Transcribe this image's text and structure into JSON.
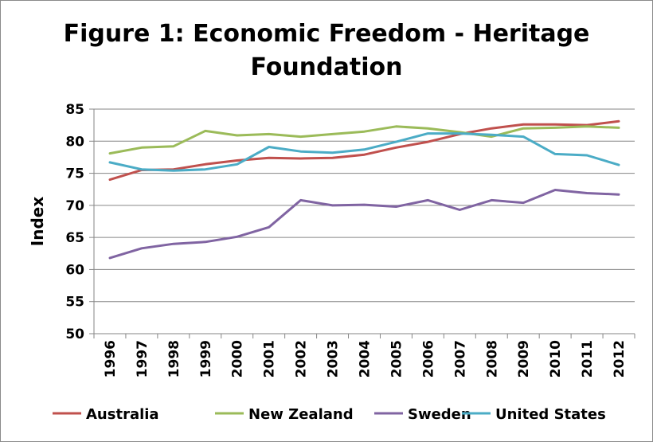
{
  "chart_data": {
    "type": "line",
    "title": "Figure 1: Economic Freedom - Heritage Foundation",
    "title_lines": [
      "Figure 1: Economic Freedom - Heritage",
      "Foundation"
    ],
    "xlabel": "",
    "ylabel": "Index",
    "ylim": [
      50,
      85
    ],
    "yticks": [
      50,
      55,
      60,
      65,
      70,
      75,
      80,
      85
    ],
    "grid": true,
    "legend": "bottom",
    "categories": [
      "1996",
      "1997",
      "1998",
      "1999",
      "2000",
      "2001",
      "2002",
      "2003",
      "2004",
      "2005",
      "2006",
      "2007",
      "2008",
      "2009",
      "2010",
      "2011",
      "2012"
    ],
    "series": [
      {
        "name": "Australia",
        "color": "#c0504d",
        "values": [
          74.0,
          75.5,
          75.6,
          76.4,
          77.0,
          77.4,
          77.3,
          77.4,
          77.9,
          79.0,
          79.9,
          81.1,
          82.0,
          82.6,
          82.6,
          82.5,
          83.1
        ]
      },
      {
        "name": "New Zealand",
        "color": "#9bbb59",
        "values": [
          78.1,
          79.0,
          79.2,
          81.6,
          80.9,
          81.1,
          80.7,
          81.1,
          81.5,
          82.3,
          82.0,
          81.4,
          80.7,
          82.0,
          82.1,
          82.3,
          82.1
        ]
      },
      {
        "name": "Sweden",
        "color": "#8064a2",
        "values": [
          61.8,
          63.3,
          64.0,
          64.3,
          65.1,
          66.6,
          70.8,
          70.0,
          70.1,
          69.8,
          70.8,
          69.3,
          70.8,
          70.4,
          72.4,
          71.9,
          71.7
        ]
      },
      {
        "name": "United States",
        "color": "#4bacc6",
        "values": [
          76.7,
          75.6,
          75.4,
          75.6,
          76.4,
          79.1,
          78.4,
          78.2,
          78.7,
          79.9,
          81.2,
          81.2,
          81.0,
          80.7,
          78.0,
          77.8,
          76.3
        ]
      }
    ]
  }
}
